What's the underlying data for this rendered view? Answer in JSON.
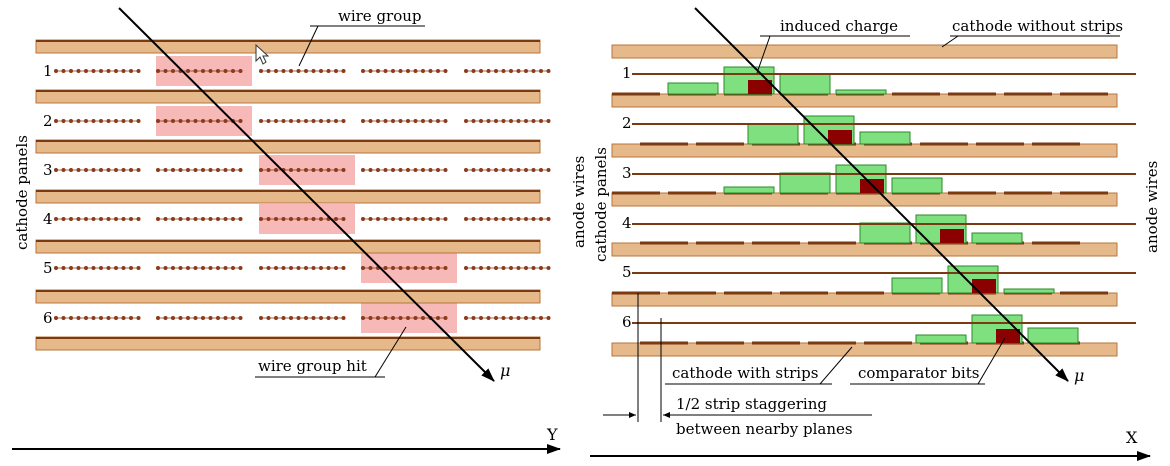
{
  "left": {
    "wire_group_label": "wire group",
    "wire_group_hit_label": "wire group hit",
    "side_label": "cathode panels",
    "plane_numbers": [
      "1",
      "2",
      "3",
      "4",
      "5",
      "6"
    ],
    "axis_label": "Y",
    "muon_label": "μ"
  },
  "right": {
    "induced_charge_label": "induced charge",
    "cathode_without_strips_label": "cathode without strips",
    "anode_wires_left_label": "anode wires",
    "cathode_panels_label": "cathode panels",
    "anode_wires_right_label": "anode wires",
    "plane_numbers": [
      "1",
      "2",
      "3",
      "4",
      "5",
      "6"
    ],
    "cathode_with_strips_label": "cathode with strips",
    "comparator_bits_label": "comparator bits",
    "staggering_line1": "1/2 strip staggering",
    "staggering_line2": "between nearby planes",
    "axis_label": "X",
    "muon_label": "μ"
  },
  "colors": {
    "panel_fill": "#e6b98a",
    "panel_edge": "#b8743e",
    "wire_dot": "#8b3a1a",
    "hit_highlight": "#f7b8b8",
    "induced_charge": "#7fe07f",
    "comparator_bit": "#8b0000",
    "strip": "#7a3a12"
  }
}
